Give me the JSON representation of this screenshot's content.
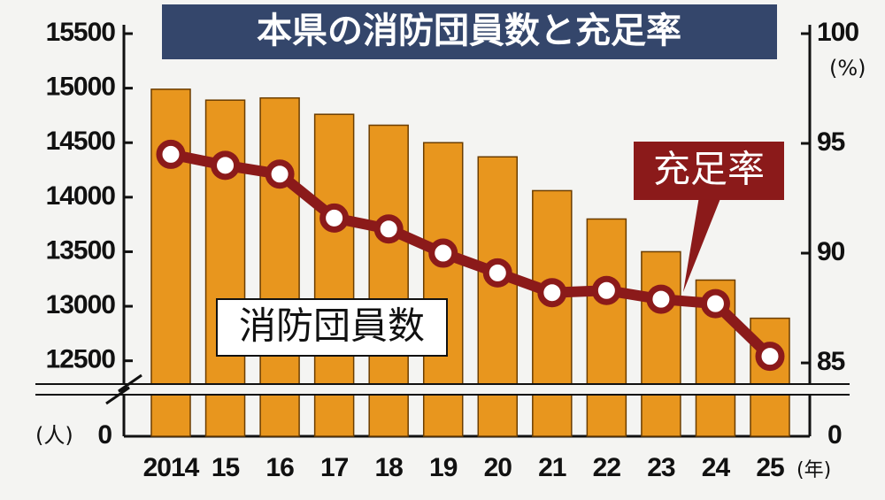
{
  "chart_data": {
    "type": "bar_line",
    "title": "本県の消防団員数と充足率",
    "categories": [
      "2014",
      "15",
      "16",
      "17",
      "18",
      "19",
      "20",
      "21",
      "22",
      "23",
      "24",
      "25"
    ],
    "x_unit": "(年)",
    "y_unit": "(人)",
    "y2_unit": "(%)",
    "series": [
      {
        "name": "消防団員数",
        "type": "bar",
        "color": "#e8961e",
        "axis": "y",
        "values": [
          14990,
          14890,
          14910,
          14760,
          14660,
          14500,
          14370,
          14060,
          13800,
          13500,
          13240,
          12890
        ]
      },
      {
        "name": "充足率",
        "type": "line",
        "color": "#8b1a1a",
        "axis": "y2",
        "values": [
          94.5,
          94.0,
          93.6,
          91.6,
          91.1,
          90.0,
          89.1,
          88.2,
          88.3,
          87.9,
          87.7,
          85.3
        ]
      }
    ],
    "ylim": [
      12400,
      15500
    ],
    "yticks": [
      12500,
      13000,
      13500,
      14000,
      14500,
      15000,
      15500
    ],
    "y2lim": [
      84.6,
      100
    ],
    "y2ticks": [
      85,
      90,
      95,
      100
    ],
    "axis_break": true,
    "yticks_below_break": [
      0
    ],
    "y2ticks_below_break": [
      0
    ]
  }
}
